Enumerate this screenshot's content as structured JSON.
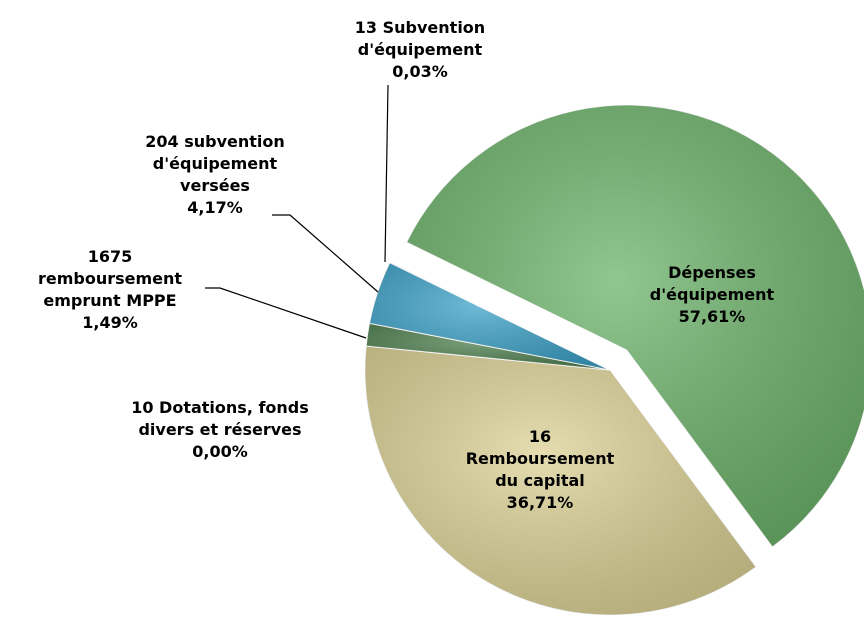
{
  "chart_data": {
    "type": "pie",
    "categories": [
      "Dépenses d'équipement",
      "16 Remboursement du capital",
      "10 Dotations, fonds divers et réserves",
      "1675 remboursement emprunt MPPE",
      "204 subvention d'équipement versées",
      "13 Subvention d'équipement"
    ],
    "values": [
      57.61,
      36.71,
      0.0,
      1.49,
      4.17,
      0.03
    ],
    "value_labels": [
      "57,61%",
      "36,71%",
      "0,00%",
      "1,49%",
      "4,17%",
      "0,03%"
    ],
    "colors": [
      "#6db36b",
      "#ddd296",
      "#c9b97a",
      "#4f8150",
      "#3ea3c9",
      "#8fd0e6"
    ]
  }
}
